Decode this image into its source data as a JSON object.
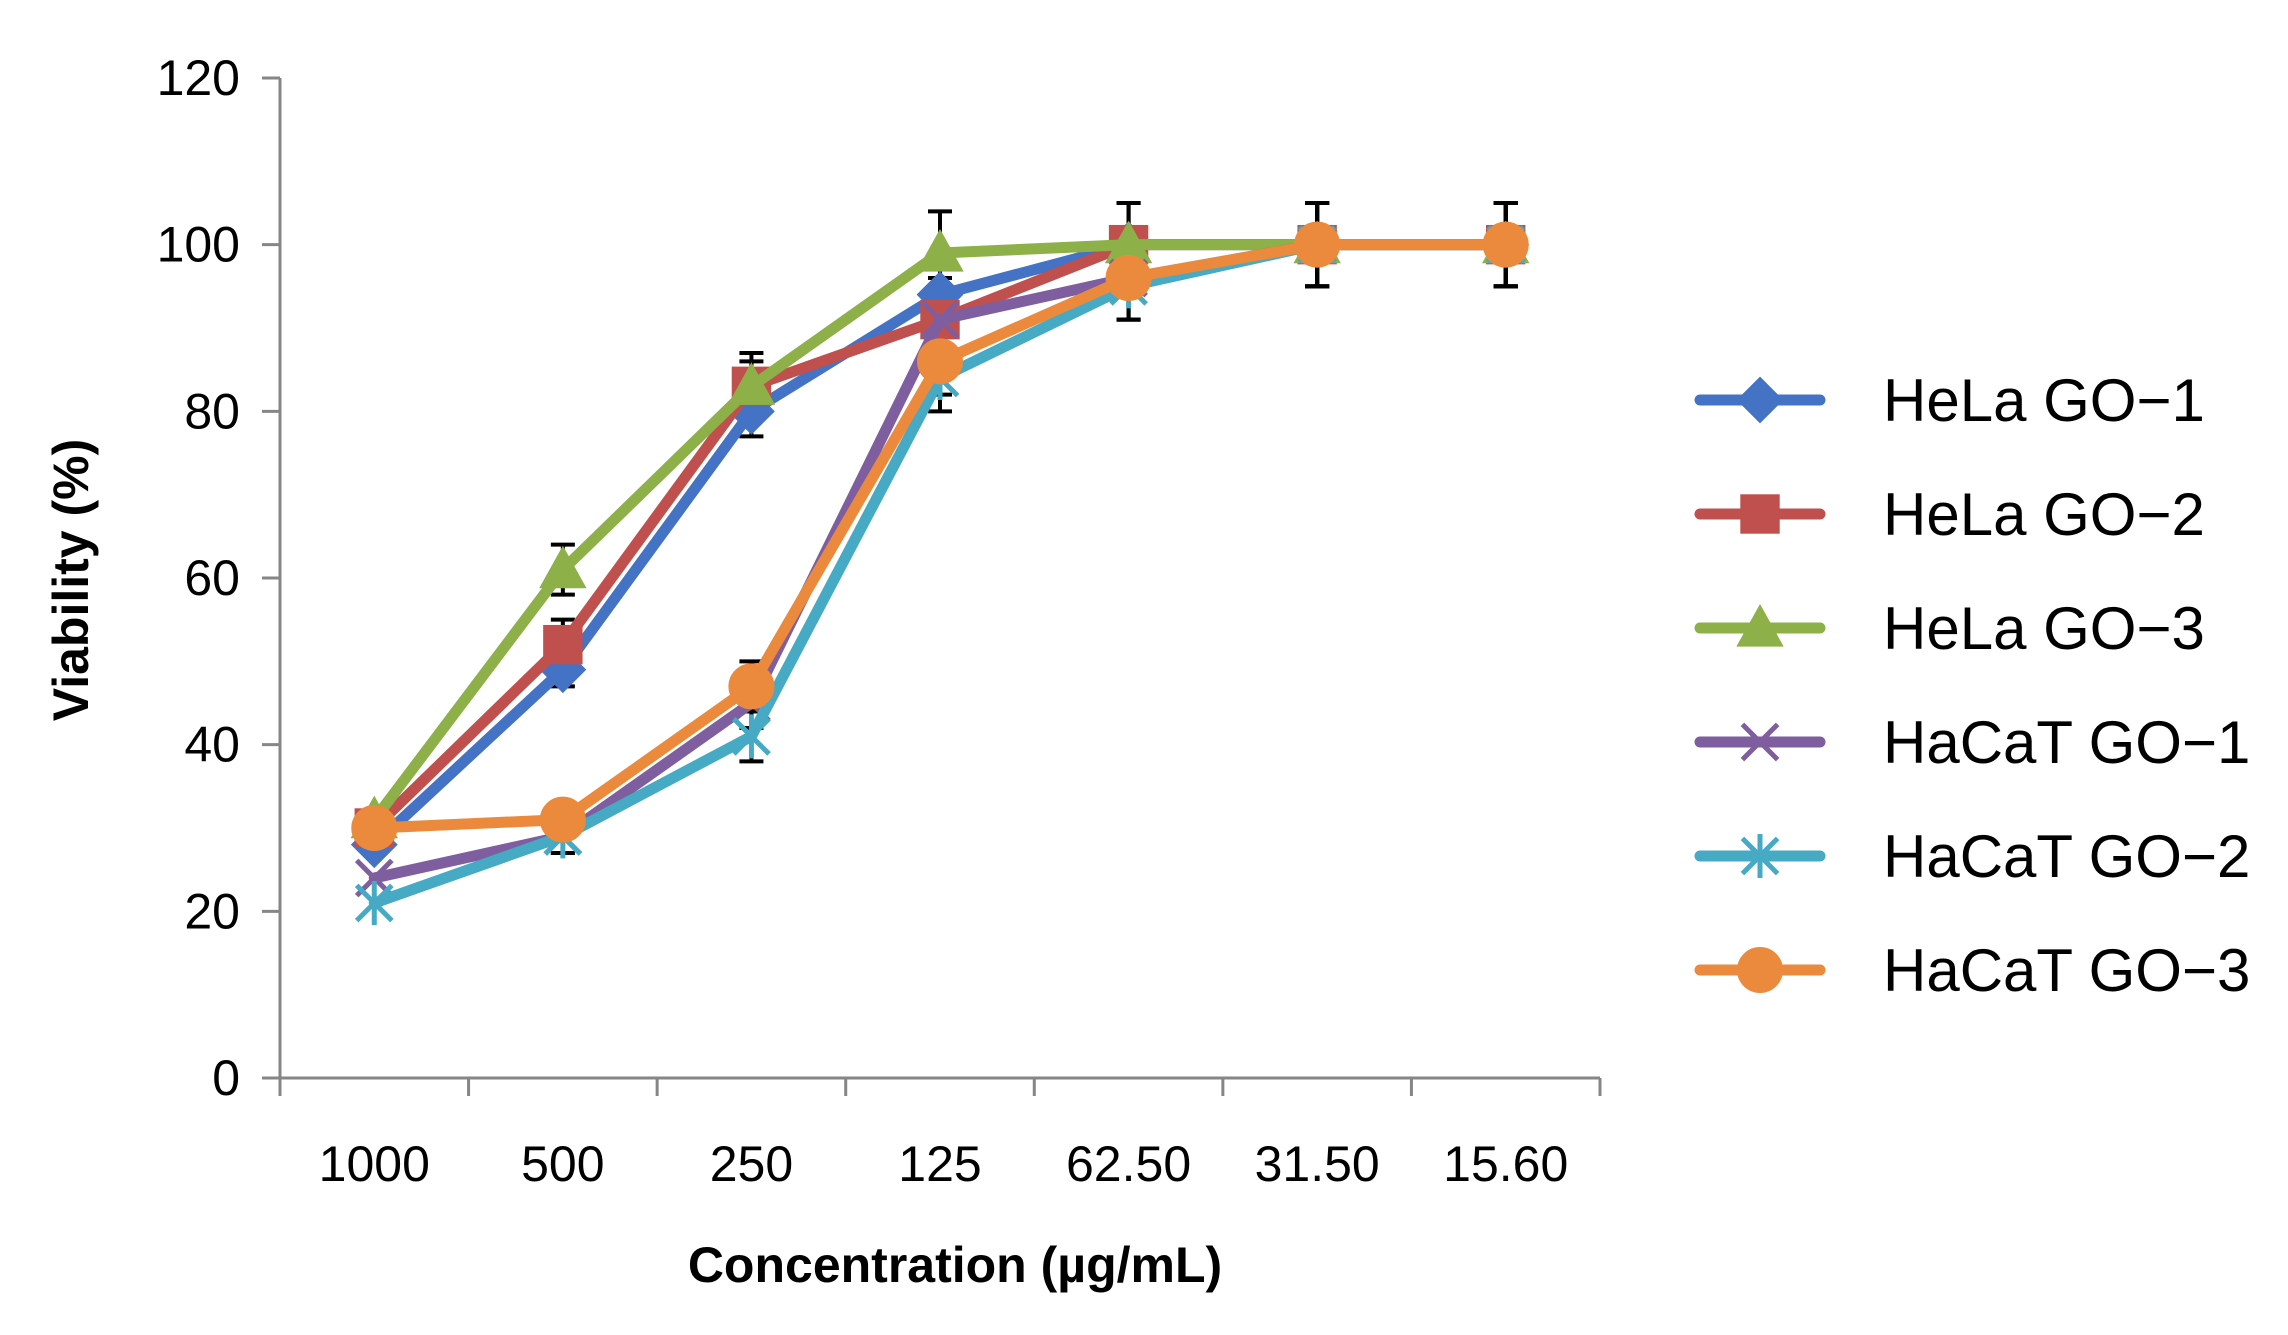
{
  "chart_data": {
    "type": "line",
    "title": "",
    "xlabel": "Concentration (µg/mL)",
    "ylabel": "Viability (%)",
    "categories": [
      "1000",
      "500",
      "250",
      "125",
      "62.50",
      "31.50",
      "15.60"
    ],
    "ylim": [
      0,
      120
    ],
    "yticks": [
      0,
      20,
      40,
      60,
      80,
      100,
      120
    ],
    "grid": false,
    "legend_position": "right",
    "series": [
      {
        "name": "HeLa GO−1",
        "color": "#4472C4",
        "marker": "diamond",
        "values": [
          28,
          49,
          80,
          94,
          100,
          100,
          100
        ],
        "error": [
          0,
          2,
          3,
          5,
          5,
          5,
          5
        ]
      },
      {
        "name": "HeLa GO−2",
        "color": "#C0504D",
        "marker": "square",
        "values": [
          30,
          52,
          83,
          91,
          100,
          100,
          100
        ],
        "error": [
          0,
          3,
          4,
          5,
          5,
          5,
          5
        ]
      },
      {
        "name": "HeLa GO−3",
        "color": "#8DB048",
        "marker": "triangle",
        "values": [
          31,
          61,
          83,
          99,
          100,
          100,
          100
        ],
        "error": [
          0,
          3,
          3,
          5,
          5,
          5,
          5
        ]
      },
      {
        "name": "HaCaT GO−1",
        "color": "#7E5E9E",
        "marker": "x",
        "values": [
          24,
          29,
          45,
          91,
          96,
          100,
          100
        ],
        "error": [
          0,
          2,
          3,
          5,
          5,
          5,
          5
        ]
      },
      {
        "name": "HaCaT GO−2",
        "color": "#46AAC5",
        "marker": "star",
        "values": [
          21,
          29,
          41,
          84,
          95,
          100,
          100
        ],
        "error": [
          0,
          2,
          3,
          4,
          4,
          5,
          5
        ]
      },
      {
        "name": "HaCaT GO−3",
        "color": "#EB8A3C",
        "marker": "circle",
        "values": [
          30,
          31,
          47,
          86,
          96,
          100,
          100
        ],
        "error": [
          0,
          2,
          3,
          4,
          5,
          5,
          5
        ]
      }
    ]
  }
}
